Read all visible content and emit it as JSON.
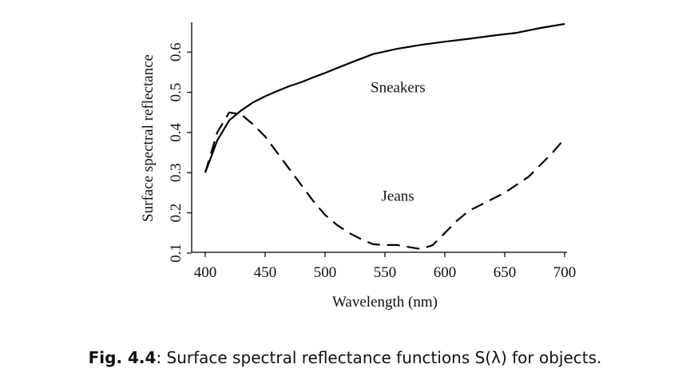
{
  "chart_data": {
    "type": "line",
    "xlabel": "Wavelength (nm)",
    "ylabel": "Surface spectral reflectance",
    "xlim": [
      400,
      700
    ],
    "ylim": [
      0.1,
      0.67
    ],
    "x_ticks": [
      400,
      450,
      500,
      550,
      600,
      650,
      700
    ],
    "y_ticks": [
      0.1,
      0.2,
      0.3,
      0.4,
      0.5,
      0.6
    ],
    "grid": false,
    "series": [
      {
        "name": "Sneakers",
        "style": "solid",
        "color": "#000000",
        "x": [
          400,
          405,
          410,
          420,
          430,
          440,
          450,
          460,
          470,
          480,
          490,
          500,
          520,
          540,
          560,
          580,
          600,
          620,
          640,
          660,
          680,
          700
        ],
        "y": [
          0.3,
          0.34,
          0.38,
          0.43,
          0.455,
          0.475,
          0.49,
          0.503,
          0.515,
          0.525,
          0.537,
          0.548,
          0.572,
          0.595,
          0.608,
          0.618,
          0.626,
          0.633,
          0.641,
          0.648,
          0.66,
          0.67
        ]
      },
      {
        "name": "Jeans",
        "style": "dashed",
        "color": "#000000",
        "x": [
          400,
          410,
          420,
          430,
          440,
          450,
          460,
          470,
          480,
          490,
          500,
          510,
          520,
          530,
          540,
          550,
          560,
          570,
          580,
          590,
          600,
          610,
          620,
          630,
          640,
          650,
          660,
          670,
          680,
          690,
          700
        ],
        "y": [
          0.3,
          0.4,
          0.45,
          0.445,
          0.42,
          0.39,
          0.35,
          0.31,
          0.27,
          0.23,
          0.195,
          0.17,
          0.15,
          0.135,
          0.122,
          0.12,
          0.12,
          0.115,
          0.11,
          0.12,
          0.15,
          0.18,
          0.205,
          0.22,
          0.235,
          0.25,
          0.27,
          0.29,
          0.32,
          0.35,
          0.385
        ]
      }
    ]
  },
  "caption": {
    "label": "Fig. 4.4",
    "text": ": Surface spectral reflectance functions S(λ) for objects."
  }
}
